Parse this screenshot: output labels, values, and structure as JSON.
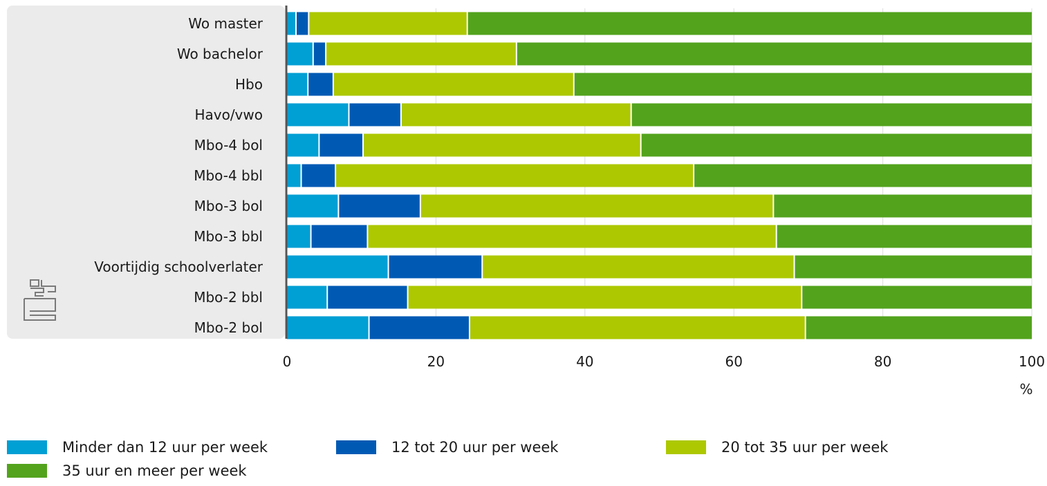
{
  "chart_data": {
    "type": "bar",
    "orientation": "horizontal",
    "stacked": true,
    "categories": [
      "Wo master",
      "Wo bachelor",
      "Hbo",
      "Havo/vwo",
      "Mbo-4 bol",
      "Mbo-4 bbl",
      "Mbo-3 bol",
      "Mbo-3 bbl",
      "Voortijdig schoolverlater",
      "Mbo-2 bbl",
      "Mbo-2 bol"
    ],
    "series": [
      {
        "name": "Minder dan 12 uur per week",
        "color": "#009fd4",
        "values": [
          1.3,
          3.6,
          2.9,
          8.4,
          4.4,
          2.0,
          7.0,
          3.3,
          13.7,
          5.5,
          11.1
        ]
      },
      {
        "name": "12 tot 20 uur per week",
        "color": "#005ab4",
        "values": [
          1.7,
          1.7,
          3.4,
          7.0,
          5.9,
          4.6,
          11.0,
          7.6,
          12.6,
          10.8,
          13.5
        ]
      },
      {
        "name": "20 tot 35 uur per week",
        "color": "#adc800",
        "values": [
          21.3,
          25.6,
          32.3,
          30.9,
          37.3,
          48.1,
          47.4,
          54.9,
          41.9,
          52.9,
          45.1
        ]
      },
      {
        "name": "35 uur en meer per week",
        "color": "#53a31d",
        "values": [
          75.7,
          69.1,
          61.4,
          53.7,
          52.4,
          45.3,
          34.6,
          34.2,
          31.8,
          30.8,
          30.3
        ]
      }
    ],
    "xlim": [
      0,
      100
    ],
    "x_ticks": [
      0,
      20,
      40,
      60,
      80,
      100
    ],
    "xlabel": "%",
    "grid": true,
    "legend_position": "bottom",
    "logo": "cbs-logo"
  }
}
